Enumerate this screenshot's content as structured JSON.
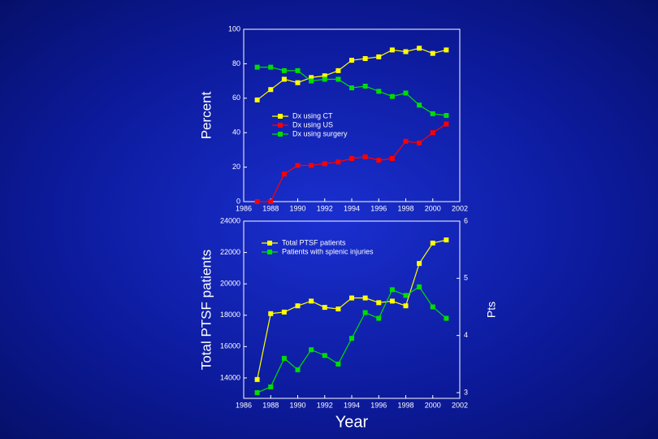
{
  "chart_data": [
    {
      "type": "line",
      "y_label": "Percent",
      "x": [
        1987,
        1988,
        1989,
        1990,
        1991,
        1992,
        1993,
        1994,
        1995,
        1996,
        1997,
        1998,
        1999,
        2000,
        2001
      ],
      "xlim": [
        1986,
        2002
      ],
      "xticks": [
        1986,
        1988,
        1990,
        1992,
        1994,
        1996,
        1998,
        2000,
        2002
      ],
      "ylim": [
        0,
        100
      ],
      "yticks": [
        0,
        20,
        40,
        60,
        80,
        100
      ],
      "series": [
        {
          "name": "Dx using CT",
          "color": "#ffff00",
          "values": [
            59,
            65,
            71,
            69,
            72,
            73,
            76,
            82,
            83,
            84,
            88,
            87,
            89,
            86,
            88
          ]
        },
        {
          "name": "Dx using US",
          "color": "#ff0000",
          "values": [
            0,
            0,
            16,
            21,
            21,
            22,
            23,
            25,
            26,
            24,
            25,
            35,
            34,
            40,
            45
          ]
        },
        {
          "name": "Dx using surgery",
          "color": "#00dd00",
          "values": [
            78,
            78,
            76,
            76,
            70,
            71,
            71,
            66,
            67,
            64,
            61,
            63,
            56,
            51,
            50
          ]
        }
      ]
    },
    {
      "type": "line",
      "x_label": "Year",
      "y_label": "Total PTSF patients",
      "y2_label": "Pts",
      "x": [
        1987,
        1988,
        1989,
        1990,
        1991,
        1992,
        1993,
        1994,
        1995,
        1996,
        1997,
        1998,
        1999,
        2000,
        2001
      ],
      "xlim": [
        1986,
        2002
      ],
      "xticks": [
        1986,
        1988,
        1990,
        1992,
        1994,
        1996,
        1998,
        2000,
        2002
      ],
      "ylim": [
        12700,
        24000
      ],
      "yticks": [
        14000,
        16000,
        18000,
        20000,
        22000,
        24000
      ],
      "y2lim": [
        2.9,
        6
      ],
      "y2ticks": [
        3,
        4,
        5,
        6
      ],
      "series": [
        {
          "name": "Total PTSF patients",
          "color": "#ffff00",
          "values": [
            13900,
            18100,
            18200,
            18600,
            18900,
            18500,
            18400,
            19100,
            19100,
            18800,
            18900,
            18600,
            21300,
            22600,
            22800
          ]
        },
        {
          "name": "Patients with splenic injuries",
          "color": "#00dd00",
          "axis": "y2",
          "values": [
            3.0,
            3.1,
            3.6,
            3.4,
            3.75,
            3.65,
            3.5,
            3.95,
            4.4,
            4.3,
            4.8,
            4.7,
            4.85,
            4.5,
            4.3
          ]
        }
      ]
    }
  ]
}
